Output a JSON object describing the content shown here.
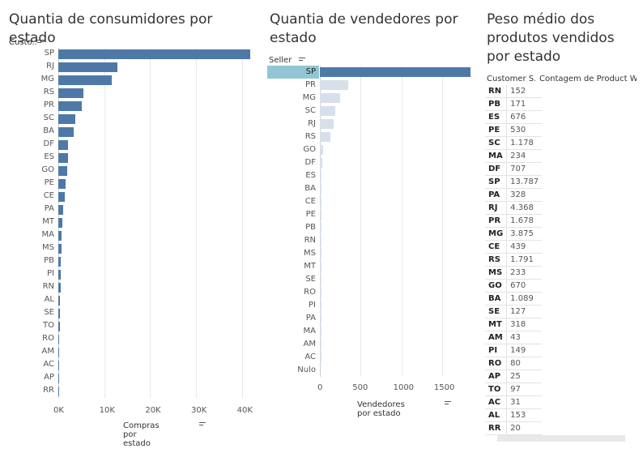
{
  "chart_data": [
    {
      "type": "bar",
      "orientation": "horizontal",
      "title": "Quantia de consumidores por estado",
      "row_field_label": "Custo..",
      "xlabel": "Compras por estado",
      "categories": [
        "SP",
        "RJ",
        "MG",
        "RS",
        "PR",
        "SC",
        "BA",
        "DF",
        "ES",
        "GO",
        "PE",
        "CE",
        "PA",
        "MT",
        "MA",
        "MS",
        "PB",
        "PI",
        "RN",
        "AL",
        "SE",
        "TO",
        "RO",
        "AM",
        "AC",
        "AP",
        "RR"
      ],
      "values": [
        41746,
        12852,
        11635,
        5466,
        5045,
        3637,
        3380,
        2140,
        2033,
        2020,
        1652,
        1336,
        975,
        907,
        747,
        709,
        536,
        495,
        485,
        413,
        350,
        280,
        253,
        148,
        81,
        68,
        46
      ],
      "ticks": [
        "0K",
        "10K",
        "20K",
        "30K",
        "40K"
      ],
      "xlim": [
        0,
        42000
      ],
      "color": "#4e79a7"
    },
    {
      "type": "bar",
      "orientation": "horizontal",
      "title": "Quantia de vendedores por estado",
      "row_field_label": "Seller ..",
      "xlabel": "Vendedores por estado",
      "categories": [
        "SP",
        "PR",
        "MG",
        "SC",
        "RJ",
        "RS",
        "GO",
        "DF",
        "ES",
        "BA",
        "CE",
        "PE",
        "PB",
        "RN",
        "MS",
        "MT",
        "SE",
        "RO",
        "PI",
        "PA",
        "MA",
        "AM",
        "AC",
        "Nulo"
      ],
      "values": [
        1849,
        349,
        244,
        190,
        171,
        129,
        40,
        30,
        23,
        19,
        13,
        9,
        6,
        5,
        5,
        4,
        2,
        2,
        1,
        1,
        1,
        1,
        1,
        0
      ],
      "ticks": [
        "0",
        "500",
        "1000",
        "1500"
      ],
      "xlim": [
        0,
        1849
      ],
      "highlighted": "SP",
      "color_selected": "#4e79a7",
      "color_other": "#d7e0ea"
    },
    {
      "type": "table",
      "title": "Peso médio dos produtos vendidos por estado",
      "columns": [
        "Customer S..",
        "Contagem de Product We.."
      ],
      "rows": [
        [
          "RN",
          "152"
        ],
        [
          "PB",
          "171"
        ],
        [
          "ES",
          "676"
        ],
        [
          "PE",
          "530"
        ],
        [
          "SC",
          "1.178"
        ],
        [
          "MA",
          "234"
        ],
        [
          "DF",
          "707"
        ],
        [
          "SP",
          "13.787"
        ],
        [
          "PA",
          "328"
        ],
        [
          "RJ",
          "4.368"
        ],
        [
          "PR",
          "1.678"
        ],
        [
          "MG",
          "3.875"
        ],
        [
          "CE",
          "439"
        ],
        [
          "RS",
          "1.791"
        ],
        [
          "MS",
          "233"
        ],
        [
          "GO",
          "670"
        ],
        [
          "BA",
          "1.089"
        ],
        [
          "SE",
          "127"
        ],
        [
          "MT",
          "318"
        ],
        [
          "AM",
          "43"
        ],
        [
          "PI",
          "149"
        ],
        [
          "RO",
          "80"
        ],
        [
          "AP",
          "25"
        ],
        [
          "TO",
          "97"
        ],
        [
          "AC",
          "31"
        ],
        [
          "AL",
          "153"
        ],
        [
          "RR",
          "20"
        ]
      ]
    }
  ]
}
